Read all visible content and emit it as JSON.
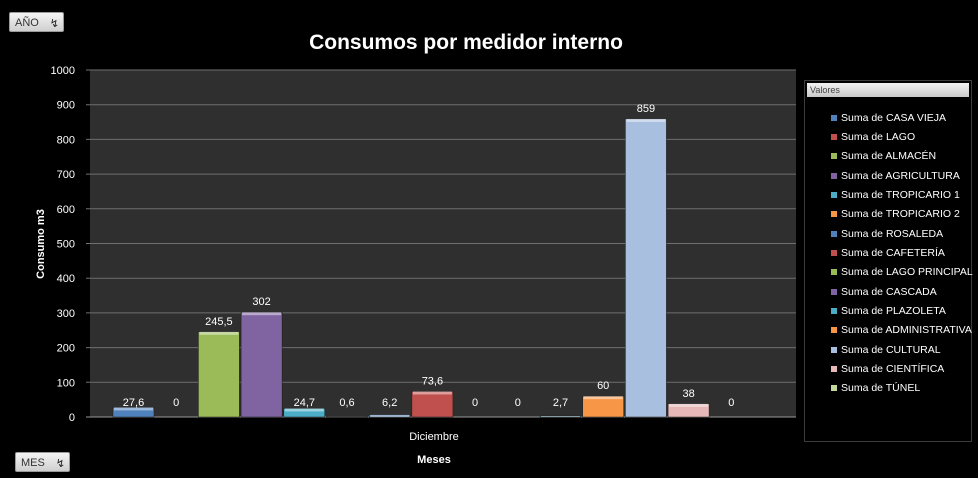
{
  "filters": {
    "year_label": "AÑO",
    "month_label": "MES",
    "filter_icon": "filter-icon"
  },
  "chart_data": {
    "type": "bar",
    "title": "Consumos por medidor interno",
    "xlabel": "Meses",
    "ylabel": "Consumo m3",
    "categories": [
      "Diciembre"
    ],
    "ylim": [
      0,
      1000
    ],
    "yticks": [
      0,
      100,
      200,
      300,
      400,
      500,
      600,
      700,
      800,
      900,
      1000
    ],
    "grid": true,
    "legend_position": "right",
    "legend_header": "Valores",
    "series": [
      {
        "name": "Suma de CASA VIEJA",
        "values": [
          27.6
        ],
        "label": "27,6",
        "color": "#4f81bd"
      },
      {
        "name": "Suma de LAGO",
        "values": [
          0
        ],
        "label": "0",
        "color": "#c0504d"
      },
      {
        "name": "Suma de ALMACÉN",
        "values": [
          245.5
        ],
        "label": "245,5",
        "color": "#9bbb59"
      },
      {
        "name": "Suma de AGRICULTURA",
        "values": [
          302
        ],
        "label": "302",
        "color": "#8064a2"
      },
      {
        "name": "Suma de TROPICARIO 1",
        "values": [
          24.7
        ],
        "label": "24,7",
        "color": "#4bacc6"
      },
      {
        "name": "Suma de TROPICARIO 2",
        "values": [
          0.6
        ],
        "label": "0,6",
        "color": "#f79646"
      },
      {
        "name": "Suma de ROSALEDA",
        "values": [
          6.2
        ],
        "label": "6,2",
        "color": "#4f81bd"
      },
      {
        "name": "Suma de CAFETERÍA",
        "values": [
          73.6
        ],
        "label": "73,6",
        "color": "#c0504d"
      },
      {
        "name": "Suma de LAGO PRINCIPAL",
        "values": [
          0
        ],
        "label": "0",
        "color": "#9bbb59"
      },
      {
        "name": "Suma de CASCADA",
        "values": [
          0
        ],
        "label": "0",
        "color": "#8064a2"
      },
      {
        "name": "Suma de PLAZOLETA",
        "values": [
          2.7
        ],
        "label": "2,7",
        "color": "#4bacc6"
      },
      {
        "name": "Suma de ADMINISTRATIVA",
        "values": [
          60
        ],
        "label": "60",
        "color": "#f79646"
      },
      {
        "name": "Suma de CULTURAL",
        "values": [
          859
        ],
        "label": "859",
        "color": "#a9bfe0"
      },
      {
        "name": "Suma de CIENTÍFICA",
        "values": [
          38
        ],
        "label": "38",
        "color": "#e6b9b8"
      },
      {
        "name": "Suma de TÚNEL",
        "values": [
          0
        ],
        "label": "0",
        "color": "#c4d79b"
      }
    ]
  }
}
